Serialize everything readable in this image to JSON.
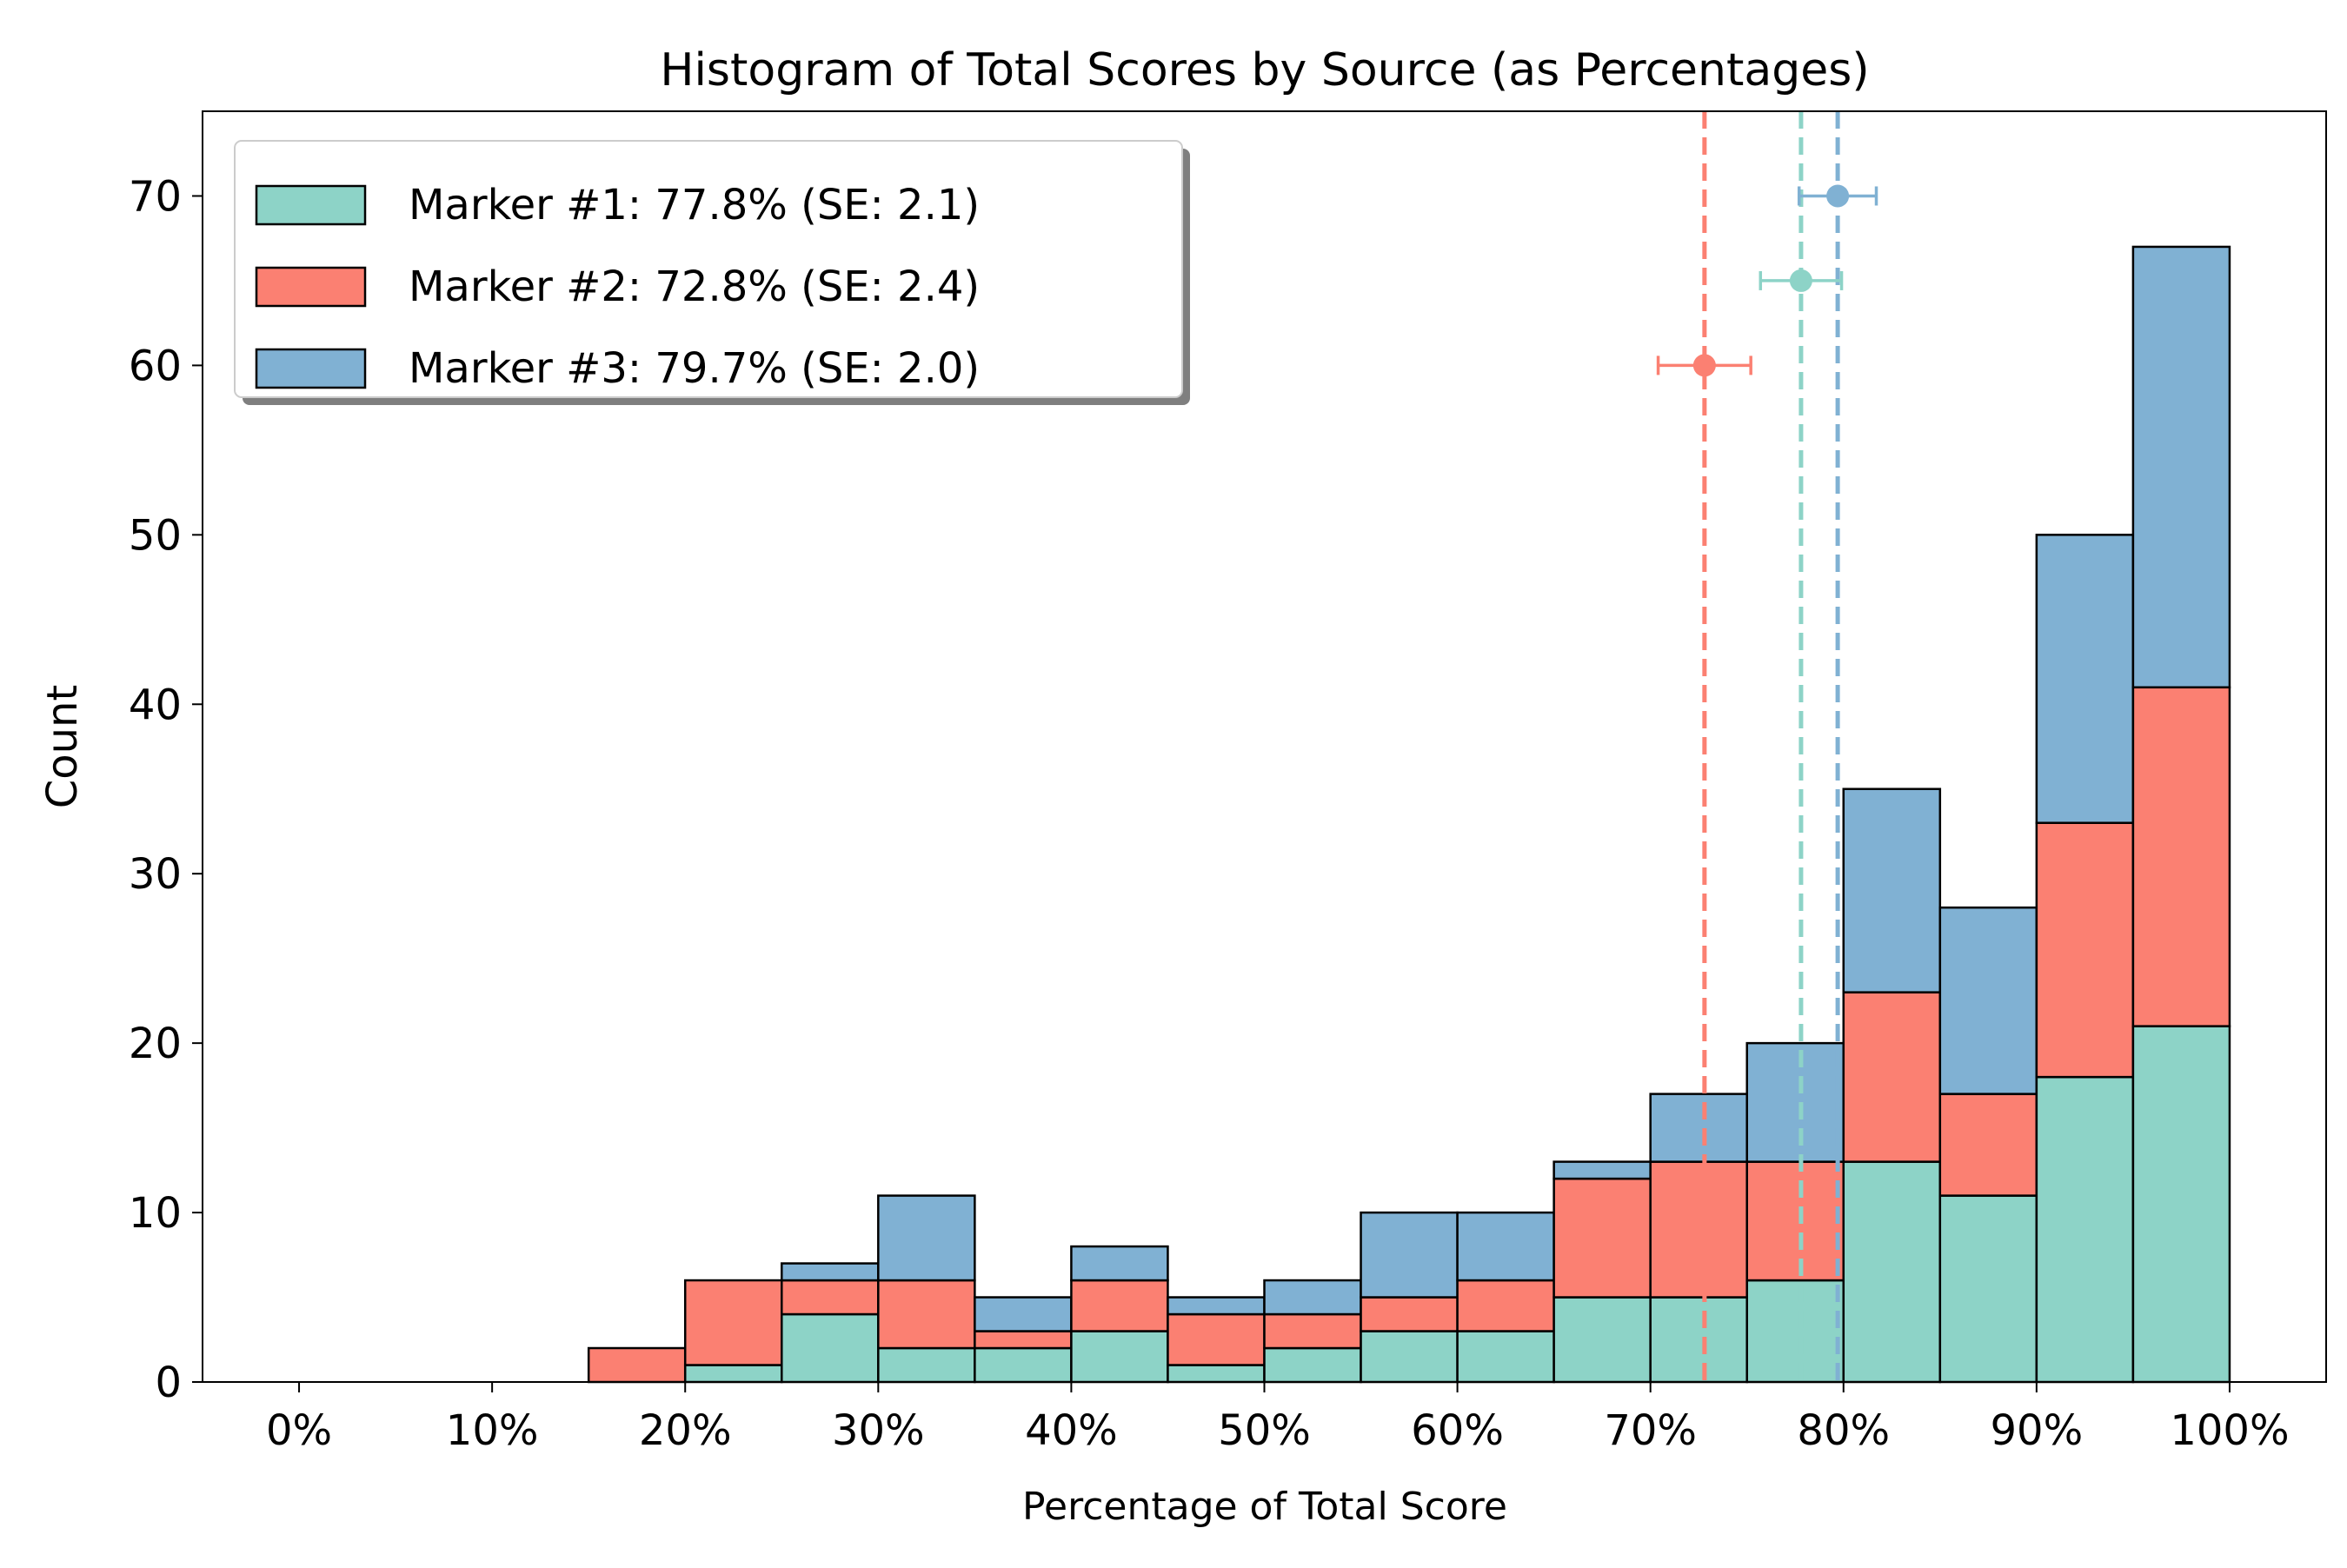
{
  "chart_data": {
    "type": "bar",
    "stacked": true,
    "title": "Histogram of Total Scores by Source (as Percentages)",
    "xlabel": "Percentage of Total Score",
    "ylabel": "Count",
    "xlim": [
      -5,
      105
    ],
    "ylim": [
      0,
      75
    ],
    "x_ticks": [
      0,
      10,
      20,
      30,
      40,
      50,
      60,
      70,
      80,
      90,
      100
    ],
    "x_tick_labels": [
      "0%",
      "10%",
      "20%",
      "30%",
      "40%",
      "50%",
      "60%",
      "70%",
      "80%",
      "90%",
      "100%"
    ],
    "y_ticks": [
      0,
      10,
      20,
      30,
      40,
      50,
      60,
      70
    ],
    "y_tick_labels": [
      "0",
      "10",
      "20",
      "30",
      "40",
      "50",
      "60",
      "70"
    ],
    "bin_edges": [
      0,
      5,
      10,
      15,
      20,
      25,
      30,
      35,
      40,
      45,
      50,
      55,
      60,
      65,
      70,
      75,
      80,
      85,
      90,
      95,
      100
    ],
    "grid": false,
    "legend_position": "top-left",
    "series": [
      {
        "name": "Marker #1",
        "legend_label": "Marker #1: 77.8% (SE: 2.1)",
        "color": "#8dd3c7",
        "values": [
          0,
          0,
          0,
          0,
          1,
          4,
          2,
          2,
          3,
          1,
          2,
          3,
          3,
          5,
          5,
          6,
          13,
          11,
          18,
          21
        ],
        "mean": 77.8,
        "se": 2.1,
        "marker_y": 65
      },
      {
        "name": "Marker #2",
        "legend_label": "Marker #2: 72.8% (SE: 2.4)",
        "color": "#fb8072",
        "values": [
          0,
          0,
          0,
          2,
          5,
          2,
          4,
          1,
          3,
          3,
          2,
          2,
          3,
          7,
          8,
          7,
          10,
          6,
          15,
          20
        ],
        "mean": 72.8,
        "se": 2.4,
        "marker_y": 60
      },
      {
        "name": "Marker #3",
        "legend_label": "Marker #3: 79.7% (SE: 2.0)",
        "color": "#80b1d3",
        "values": [
          0,
          0,
          0,
          0,
          0,
          1,
          5,
          2,
          2,
          1,
          2,
          5,
          4,
          1,
          4,
          7,
          12,
          11,
          17,
          26
        ],
        "mean": 79.7,
        "se": 2.0,
        "marker_y": 70
      }
    ]
  }
}
